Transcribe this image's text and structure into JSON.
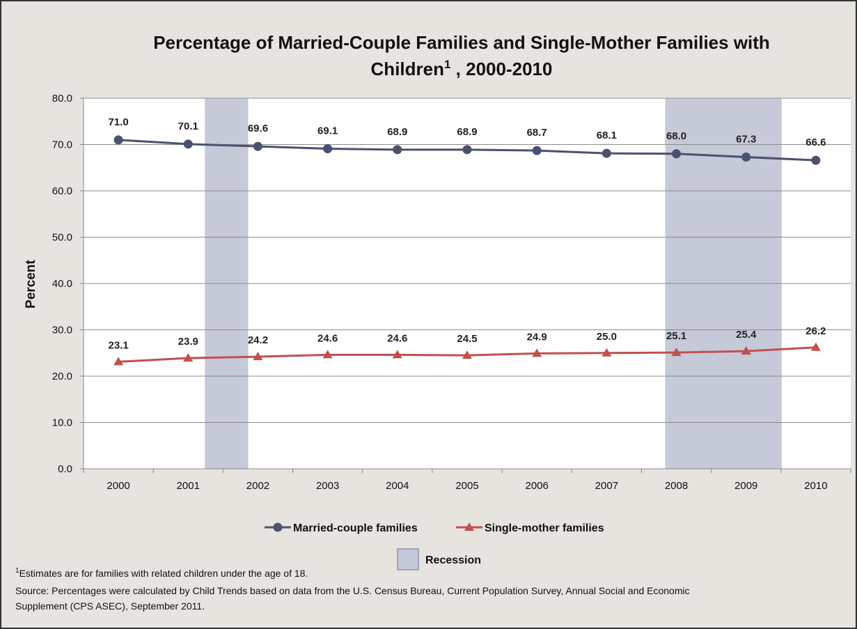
{
  "chart_data": {
    "type": "line",
    "title": [
      "Percentage of Married-Couple Families and Single-Mother Families with",
      "Children"
    ],
    "title_superscript": "1",
    "title_suffix": " , 2000-2010",
    "y_label": "Percent",
    "x": [
      2000,
      2001,
      2002,
      2003,
      2004,
      2005,
      2006,
      2007,
      2008,
      2009,
      2010
    ],
    "xlim": [
      1999.5,
      2010.5
    ],
    "xticks": [
      2000,
      2001,
      2002,
      2003,
      2004,
      2005,
      2006,
      2007,
      2008,
      2009,
      2010
    ],
    "ylim": [
      0,
      80
    ],
    "yticks": [
      {
        "value": 0,
        "label": "0.0"
      },
      {
        "value": 10,
        "label": "10.0"
      },
      {
        "value": 20,
        "label": "20.0"
      },
      {
        "value": 30,
        "label": "30.0"
      },
      {
        "value": 40,
        "label": "40.0"
      },
      {
        "value": 50,
        "label": "50.0"
      },
      {
        "value": 60,
        "label": "60.0"
      },
      {
        "value": 70,
        "label": "70.0"
      },
      {
        "value": 80,
        "label": "80.0"
      }
    ],
    "grid": true,
    "series": [
      {
        "name": "Married-couple families",
        "color": "#4a5270",
        "marker": "circle",
        "values": [
          71.0,
          70.1,
          69.6,
          69.1,
          68.9,
          68.9,
          68.7,
          68.1,
          68.0,
          67.3,
          66.6
        ],
        "value_labels": [
          "71.0",
          "70.1",
          "69.6",
          "69.1",
          "68.9",
          "68.9",
          "68.7",
          "68.1",
          "68.0",
          "67.3",
          "66.6"
        ]
      },
      {
        "name": "Single-mother families",
        "color": "#c0504d",
        "marker": "triangle",
        "values": [
          23.1,
          23.9,
          24.2,
          24.6,
          24.6,
          24.5,
          24.9,
          25.0,
          25.1,
          25.4,
          26.2
        ],
        "value_labels": [
          "23.1",
          "23.9",
          "24.2",
          "24.6",
          "24.6",
          "24.5",
          "24.9",
          "25.0",
          "25.1",
          "25.4",
          "26.2"
        ]
      }
    ],
    "recessions": [
      {
        "start": 2001.24,
        "end": 2001.86
      },
      {
        "start": 2007.84,
        "end": 2009.51
      }
    ],
    "recession_label": "Recession",
    "recession_color": "#c5c9d8",
    "footnote_marker": "1",
    "footnote": "Estimates are for families with related children under the age of 18.",
    "source": [
      "Source: Percentages were calculated by Child Trends based on data from the U.S. Census Bureau, Current Population Survey, Annual Social and Economic",
      "Supplement (CPS ASEC), September 2011."
    ]
  }
}
